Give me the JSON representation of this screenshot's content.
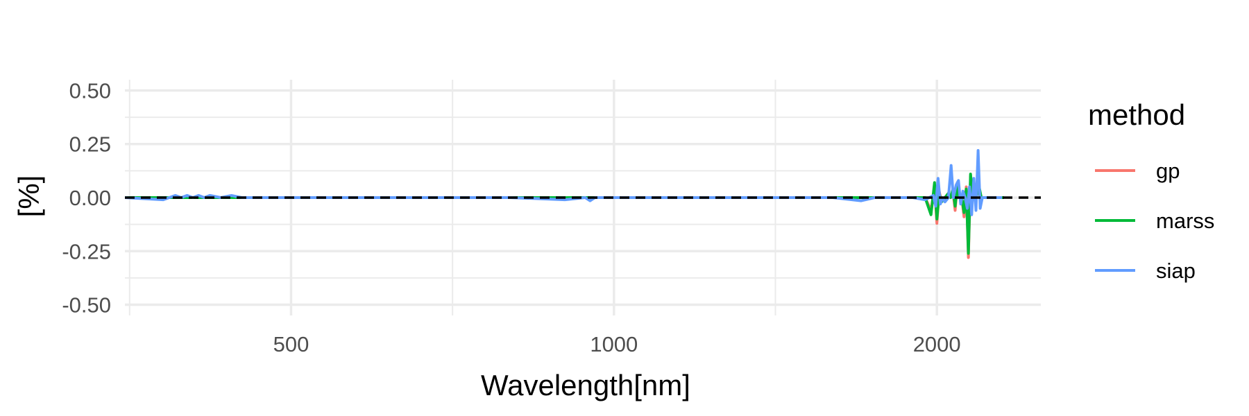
{
  "chart_data": {
    "type": "line",
    "xlabel": "Wavelength[nm]",
    "ylabel": "[%]",
    "x_scale": "log10",
    "xlim": [
      350,
      2500
    ],
    "ylim": [
      -0.55,
      0.55
    ],
    "x_ticks": [
      500,
      1000,
      2000
    ],
    "x_tick_labels": [
      "500",
      "1000",
      "2000"
    ],
    "y_ticks": [
      0.5,
      0.25,
      0.0,
      -0.25,
      -0.5
    ],
    "y_tick_labels": [
      "0.50",
      "0.25",
      "0.00",
      "-0.25",
      "-0.50"
    ],
    "grid": true,
    "reference_line": {
      "y": 0,
      "style": "dashed",
      "color": "#000000"
    },
    "legend": {
      "title": "method",
      "position": "right"
    },
    "series": [
      {
        "name": "gp",
        "color": "#F8766D",
        "x": [
          350,
          1950,
          1975,
          1990,
          2000,
          2010,
          2020,
          2035,
          2050,
          2060,
          2070,
          2080,
          2090,
          2100,
          2110,
          2120,
          2130,
          2140,
          2150,
          2160,
          2175,
          2190,
          2200,
          2215,
          2230,
          2245,
          2260,
          2280,
          2290,
          2300,
          2310
        ],
        "y": [
          0.0,
          0.0,
          -0.06,
          0.05,
          -0.12,
          0.03,
          -0.02,
          0.0,
          0.02,
          0.0,
          0.03,
          -0.06,
          0.07,
          0.0,
          0.0,
          -0.09,
          0.05,
          -0.28,
          0.1,
          0.0,
          0.0,
          0.04,
          0.0,
          0.0,
          0.0,
          0.0,
          0.0,
          0.0,
          0.0,
          0.0,
          0.0
        ]
      },
      {
        "name": "marss",
        "color": "#00BA38",
        "x": [
          350,
          1950,
          1975,
          1990,
          2000,
          2010,
          2020,
          2035,
          2050,
          2060,
          2070,
          2080,
          2090,
          2100,
          2110,
          2120,
          2130,
          2140,
          2150,
          2160,
          2175,
          2190,
          2200,
          2215,
          2230,
          2245,
          2260,
          2280,
          2290,
          2300,
          2310
        ],
        "y": [
          0.0,
          0.0,
          -0.08,
          0.07,
          -0.1,
          0.02,
          -0.02,
          0.0,
          0.02,
          0.0,
          0.04,
          -0.04,
          0.05,
          0.0,
          0.0,
          -0.07,
          0.04,
          -0.26,
          0.11,
          0.0,
          0.0,
          0.05,
          0.0,
          0.0,
          0.0,
          0.0,
          0.0,
          0.0,
          0.0,
          0.0,
          0.0
        ]
      },
      {
        "name": "siap",
        "color": "#619CFF",
        "x": [
          350,
          380,
          390,
          395,
          400,
          405,
          410,
          415,
          420,
          430,
          440,
          450,
          500,
          600,
          700,
          800,
          900,
          940,
          950,
          960,
          1000,
          1200,
          1400,
          1600,
          1700,
          1750,
          1800,
          1900,
          1950,
          1985,
          1995,
          2005,
          2015,
          2025,
          2035,
          2050,
          2062,
          2072,
          2085,
          2095,
          2105,
          2115,
          2125,
          2135,
          2145,
          2155,
          2165,
          2175,
          2185,
          2195,
          2205,
          2215,
          2225,
          2240,
          2250,
          2260,
          2270,
          2285,
          2300
        ],
        "y": [
          0.0,
          -0.01,
          0.01,
          0.0,
          0.01,
          0.0,
          0.01,
          0.0,
          0.01,
          0.0,
          0.01,
          0.0,
          0.0,
          0.0,
          0.0,
          0.0,
          -0.01,
          0.0,
          -0.015,
          0.0,
          0.0,
          0.0,
          0.0,
          0.0,
          -0.015,
          0.0,
          0.0,
          0.0,
          -0.01,
          0.01,
          -0.04,
          0.09,
          -0.03,
          0.0,
          -0.02,
          0.0,
          0.15,
          0.0,
          0.06,
          0.08,
          -0.03,
          0.03,
          0.0,
          -0.05,
          0.05,
          -0.08,
          0.09,
          -0.06,
          0.22,
          -0.05,
          0.0,
          0.0,
          0.0,
          0.0,
          0.0,
          0.0,
          0.0,
          0.0,
          0.0
        ]
      }
    ]
  }
}
